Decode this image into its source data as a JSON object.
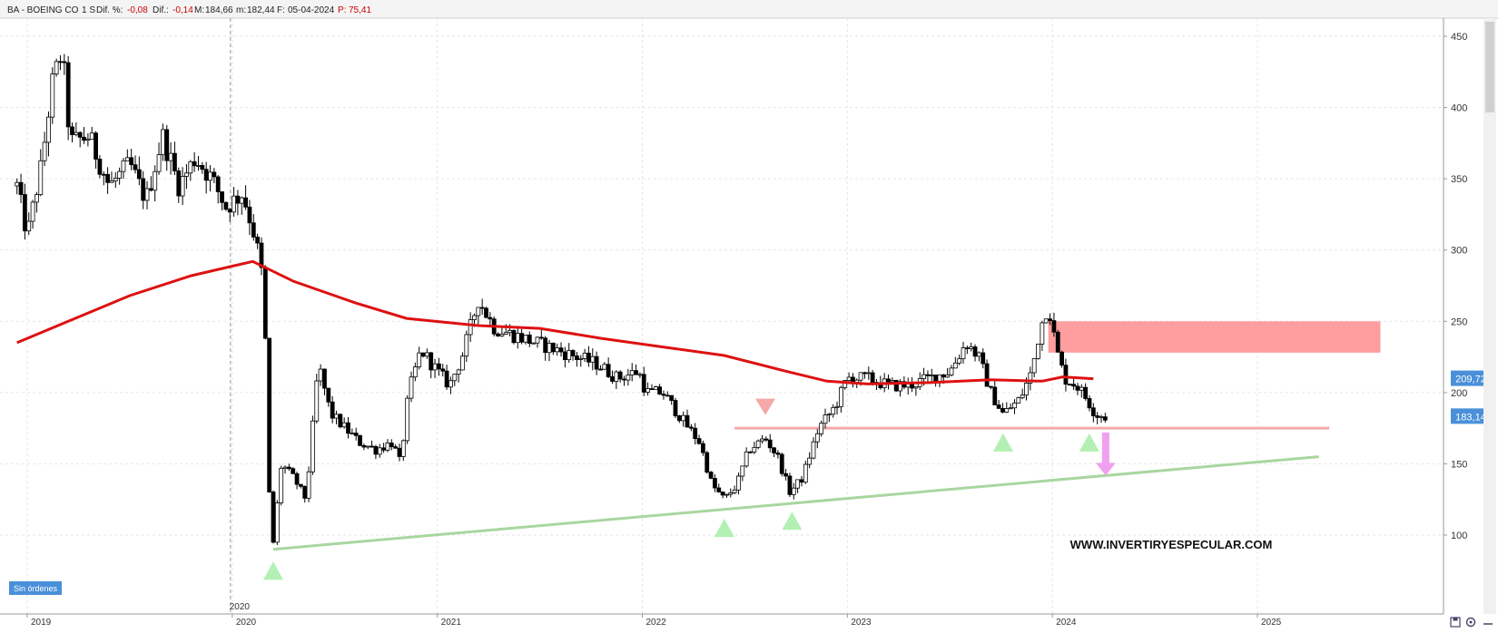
{
  "header": {
    "symbol": "BA - BOEING CO",
    "period": "1 S",
    "dif_label": "Dif. %:",
    "dif_pct": "-0,08",
    "dif_abs_label": "Dif.:",
    "dif_abs": "-0,14",
    "max_label": "M:",
    "max": "184,66",
    "min_label": "m:",
    "min": "182,44",
    "date_label": "F:",
    "date": "05-04-2024",
    "p_label": "P:",
    "p": "75,41"
  },
  "badges": {
    "ma_value": "209,72",
    "price_value": "183,14",
    "orders": "Sin órdenes"
  },
  "watermark": "WWW.INVERTIRYESPECULAR.COM",
  "markers": {
    "year_2020": "2020"
  },
  "colors": {
    "up_candle": "#ffffff",
    "down_candle": "#000000",
    "moving_average": "#dd1111",
    "resistance_zone": "#ff9e9e",
    "support_line": "#f4a8a8",
    "trendline": "#a9d6a0",
    "up_triangle": "#b3f0b3",
    "down_triangle": "#f5a8a8",
    "down_arrow": "#f0a0f0",
    "badge": "#4a90d9"
  },
  "icons": [
    "save-icon",
    "settings-icon",
    "minimize-icon"
  ],
  "chart_data": {
    "type": "candlestick",
    "timeframe": "weekly",
    "y_ticks": [
      100,
      150,
      200,
      250,
      300,
      350,
      400,
      450
    ],
    "x_ticks": [
      "2019",
      "2020",
      "2021",
      "2022",
      "2023",
      "2024",
      "2025"
    ],
    "ylim": [
      75,
      462
    ],
    "xlim": [
      2018.9,
      2025.6
    ],
    "price_path": [
      [
        2018.95,
        345
      ],
      [
        2019.0,
        310
      ],
      [
        2019.07,
        360
      ],
      [
        2019.12,
        415
      ],
      [
        2019.17,
        440
      ],
      [
        2019.21,
        375
      ],
      [
        2019.3,
        380
      ],
      [
        2019.4,
        345
      ],
      [
        2019.5,
        360
      ],
      [
        2019.58,
        335
      ],
      [
        2019.66,
        380
      ],
      [
        2019.74,
        345
      ],
      [
        2019.82,
        365
      ],
      [
        2019.9,
        350
      ],
      [
        2019.97,
        330
      ],
      [
        2020.05,
        340
      ],
      [
        2020.1,
        315
      ],
      [
        2020.14,
        290
      ],
      [
        2020.16,
        245
      ],
      [
        2020.18,
        130
      ],
      [
        2020.2,
        95
      ],
      [
        2020.24,
        150
      ],
      [
        2020.3,
        140
      ],
      [
        2020.36,
        125
      ],
      [
        2020.42,
        220
      ],
      [
        2020.48,
        185
      ],
      [
        2020.55,
        175
      ],
      [
        2020.62,
        165
      ],
      [
        2020.7,
        160
      ],
      [
        2020.78,
        165
      ],
      [
        2020.82,
        150
      ],
      [
        2020.86,
        200
      ],
      [
        2020.92,
        230
      ],
      [
        2021.0,
        215
      ],
      [
        2021.06,
        205
      ],
      [
        2021.12,
        225
      ],
      [
        2021.2,
        265
      ],
      [
        2021.28,
        245
      ],
      [
        2021.38,
        240
      ],
      [
        2021.48,
        235
      ],
      [
        2021.58,
        230
      ],
      [
        2021.68,
        225
      ],
      [
        2021.78,
        220
      ],
      [
        2021.88,
        210
      ],
      [
        2021.98,
        215
      ],
      [
        2022.02,
        200
      ],
      [
        2022.1,
        200
      ],
      [
        2022.2,
        180
      ],
      [
        2022.28,
        165
      ],
      [
        2022.34,
        135
      ],
      [
        2022.4,
        125
      ],
      [
        2022.46,
        135
      ],
      [
        2022.52,
        160
      ],
      [
        2022.6,
        168
      ],
      [
        2022.66,
        155
      ],
      [
        2022.72,
        130
      ],
      [
        2022.78,
        140
      ],
      [
        2022.86,
        175
      ],
      [
        2022.94,
        190
      ],
      [
        2023.0,
        210
      ],
      [
        2023.1,
        210
      ],
      [
        2023.2,
        205
      ],
      [
        2023.3,
        205
      ],
      [
        2023.4,
        210
      ],
      [
        2023.5,
        215
      ],
      [
        2023.58,
        235
      ],
      [
        2023.64,
        225
      ],
      [
        2023.7,
        200
      ],
      [
        2023.76,
        185
      ],
      [
        2023.84,
        195
      ],
      [
        2023.9,
        215
      ],
      [
        2023.94,
        245
      ],
      [
        2023.98,
        262
      ],
      [
        2024.02,
        230
      ],
      [
        2024.06,
        210
      ],
      [
        2024.12,
        205
      ],
      [
        2024.17,
        195
      ],
      [
        2024.21,
        185
      ],
      [
        2024.26,
        183
      ]
    ],
    "moving_average": [
      [
        2018.95,
        235
      ],
      [
        2019.2,
        250
      ],
      [
        2019.5,
        268
      ],
      [
        2019.8,
        282
      ],
      [
        2020.1,
        292
      ],
      [
        2020.3,
        278
      ],
      [
        2020.6,
        263
      ],
      [
        2020.85,
        252
      ],
      [
        2021.2,
        247
      ],
      [
        2021.5,
        245
      ],
      [
        2021.8,
        238
      ],
      [
        2022.1,
        232
      ],
      [
        2022.4,
        226
      ],
      [
        2022.7,
        215
      ],
      [
        2022.9,
        208
      ],
      [
        2023.1,
        206
      ],
      [
        2023.4,
        207
      ],
      [
        2023.7,
        209
      ],
      [
        2023.95,
        208
      ],
      [
        2024.05,
        211
      ],
      [
        2024.2,
        209.72
      ]
    ],
    "annotations": {
      "resistance_zone": {
        "x_start": 2023.98,
        "x_end": 2025.6,
        "y_low": 228,
        "y_high": 250
      },
      "support_line": {
        "x_start": 2022.45,
        "x_end": 2025.35,
        "y": 175
      },
      "trendline": {
        "start": [
          2020.2,
          90
        ],
        "end": [
          2025.3,
          155
        ]
      },
      "up_triangles": [
        [
          2020.2,
          75
        ],
        [
          2022.4,
          105
        ],
        [
          2022.73,
          110
        ],
        [
          2023.76,
          165
        ],
        [
          2024.18,
          165
        ]
      ],
      "down_triangles": [
        [
          2022.6,
          190
        ]
      ],
      "down_arrow": {
        "x": 2024.26,
        "y_from": 172,
        "y_to": 143
      }
    }
  }
}
